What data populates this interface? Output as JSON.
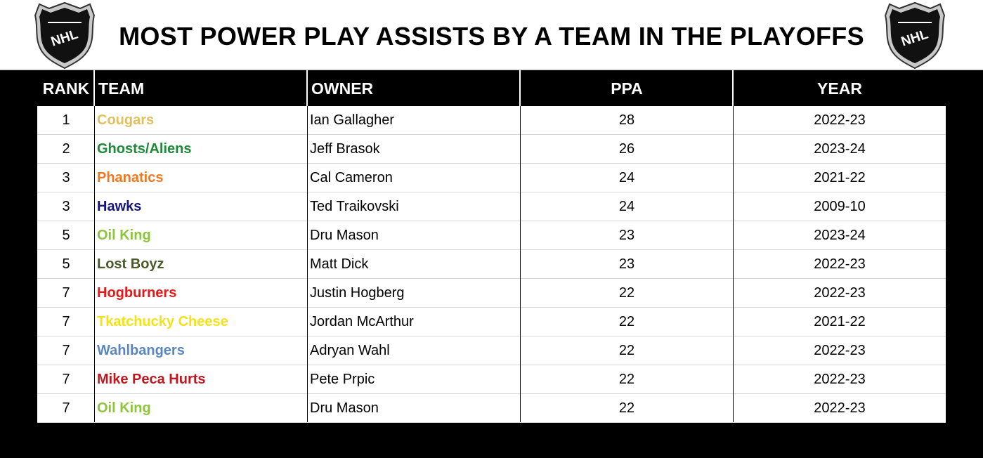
{
  "title": "MOST POWER PLAY ASSISTS BY A TEAM IN THE PLAYOFFS",
  "logo_text": "NHL",
  "columns": {
    "rank": "RANK",
    "team": "TEAM",
    "owner": "OWNER",
    "ppa": "PPA",
    "year": "YEAR"
  },
  "rows": [
    {
      "rank": "1",
      "team": "Cougars",
      "team_color": "#E0C060",
      "owner": "Ian Gallagher",
      "ppa": "28",
      "year": "2022-23"
    },
    {
      "rank": "2",
      "team": "Ghosts/Aliens",
      "team_color": "#1B8A3A",
      "owner": "Jeff Brasok",
      "ppa": "26",
      "year": "2023-24"
    },
    {
      "rank": "3",
      "team": "Phanatics",
      "team_color": "#F07820",
      "owner": "Cal Cameron",
      "ppa": "24",
      "year": "2021-22"
    },
    {
      "rank": "3",
      "team": "Hawks",
      "team_color": "#14147A",
      "owner": "Ted Traikovski",
      "ppa": "24",
      "year": "2009-10"
    },
    {
      "rank": "5",
      "team": "Oil King",
      "team_color": "#8CC43C",
      "owner": "Dru Mason",
      "ppa": "23",
      "year": "2023-24"
    },
    {
      "rank": "5",
      "team": "Lost Boyz",
      "team_color": "#4A5A28",
      "owner": "Matt Dick",
      "ppa": "23",
      "year": "2022-23"
    },
    {
      "rank": "7",
      "team": "Hogburners",
      "team_color": "#E81818",
      "owner": "Justin Hogberg",
      "ppa": "22",
      "year": "2022-23"
    },
    {
      "rank": "7",
      "team": "Tkatchucky Cheese",
      "team_color": "#F2E21A",
      "owner": "Jordan McArthur",
      "ppa": "22",
      "year": "2021-22"
    },
    {
      "rank": "7",
      "team": "Wahlbangers",
      "team_color": "#5A86C0",
      "owner": "Adryan Wahl",
      "ppa": "22",
      "year": "2022-23"
    },
    {
      "rank": "7",
      "team": "Mike Peca Hurts",
      "team_color": "#C0181E",
      "owner": "Pete Prpic",
      "ppa": "22",
      "year": "2022-23"
    },
    {
      "rank": "7",
      "team": "Oil King",
      "team_color": "#8CC43C",
      "owner": "Dru Mason",
      "ppa": "22",
      "year": "2022-23"
    }
  ]
}
